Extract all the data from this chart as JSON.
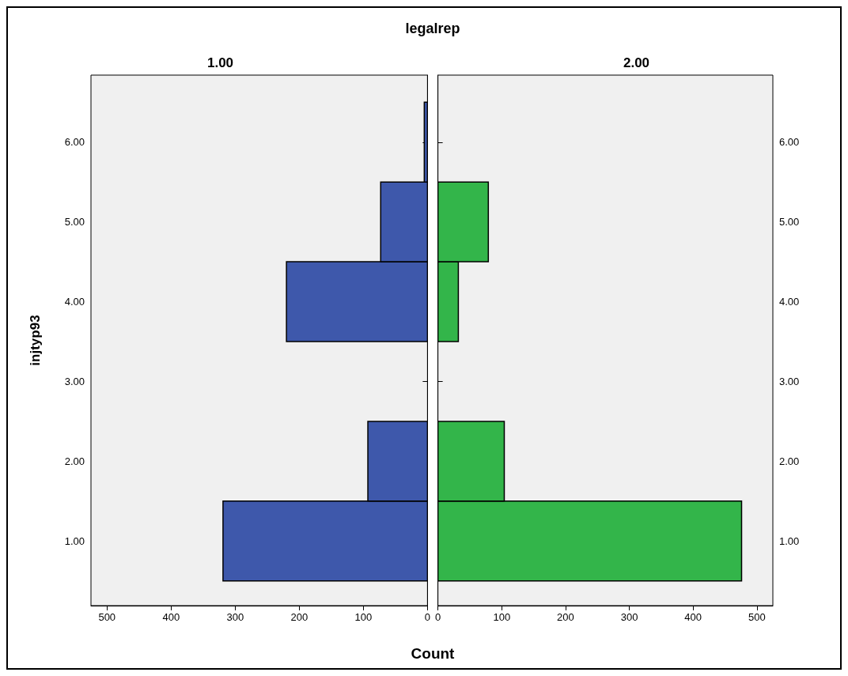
{
  "chart_data": [
    {
      "type": "histogram",
      "orientation": "horizontal",
      "title": "legalrep",
      "subtitle": "1.00",
      "xlabel": "Count",
      "ylabel": "injtyp93",
      "color": "#3e58ab",
      "bins": [
        0.5,
        1.5,
        2.5,
        3.5,
        4.5,
        5.5,
        6.5
      ],
      "values": [
        319,
        93,
        0,
        220,
        73,
        5
      ],
      "xlim": [
        525,
        0
      ],
      "xticks": [
        0,
        100,
        200,
        300,
        400,
        500
      ],
      "ylim": [
        0.19,
        6.84
      ],
      "yticks": [
        {
          "value": 1,
          "label": "1.00"
        },
        {
          "value": 2,
          "label": "2.00"
        },
        {
          "value": 3,
          "label": "3.00"
        },
        {
          "value": 4,
          "label": "4.00"
        },
        {
          "value": 5,
          "label": "5.00"
        },
        {
          "value": 6,
          "label": "6.00"
        }
      ],
      "grid": false
    },
    {
      "type": "histogram",
      "orientation": "horizontal",
      "subtitle": "2.00",
      "color": "#33b54a",
      "bins": [
        0.5,
        1.5,
        2.5,
        3.5,
        4.5,
        5.5,
        6.5
      ],
      "values": [
        476,
        104,
        0,
        32,
        79,
        0
      ],
      "xlim": [
        0,
        525
      ],
      "xticks": [
        0,
        100,
        200,
        300,
        400,
        500
      ],
      "ylim": [
        0.19,
        6.84
      ],
      "yticks": [
        {
          "value": 1,
          "label": "1.00"
        },
        {
          "value": 2,
          "label": "2.00"
        },
        {
          "value": 3,
          "label": "3.00"
        },
        {
          "value": 4,
          "label": "4.00"
        },
        {
          "value": 5,
          "label": "5.00"
        },
        {
          "value": 6,
          "label": "6.00"
        }
      ],
      "grid": false
    }
  ]
}
